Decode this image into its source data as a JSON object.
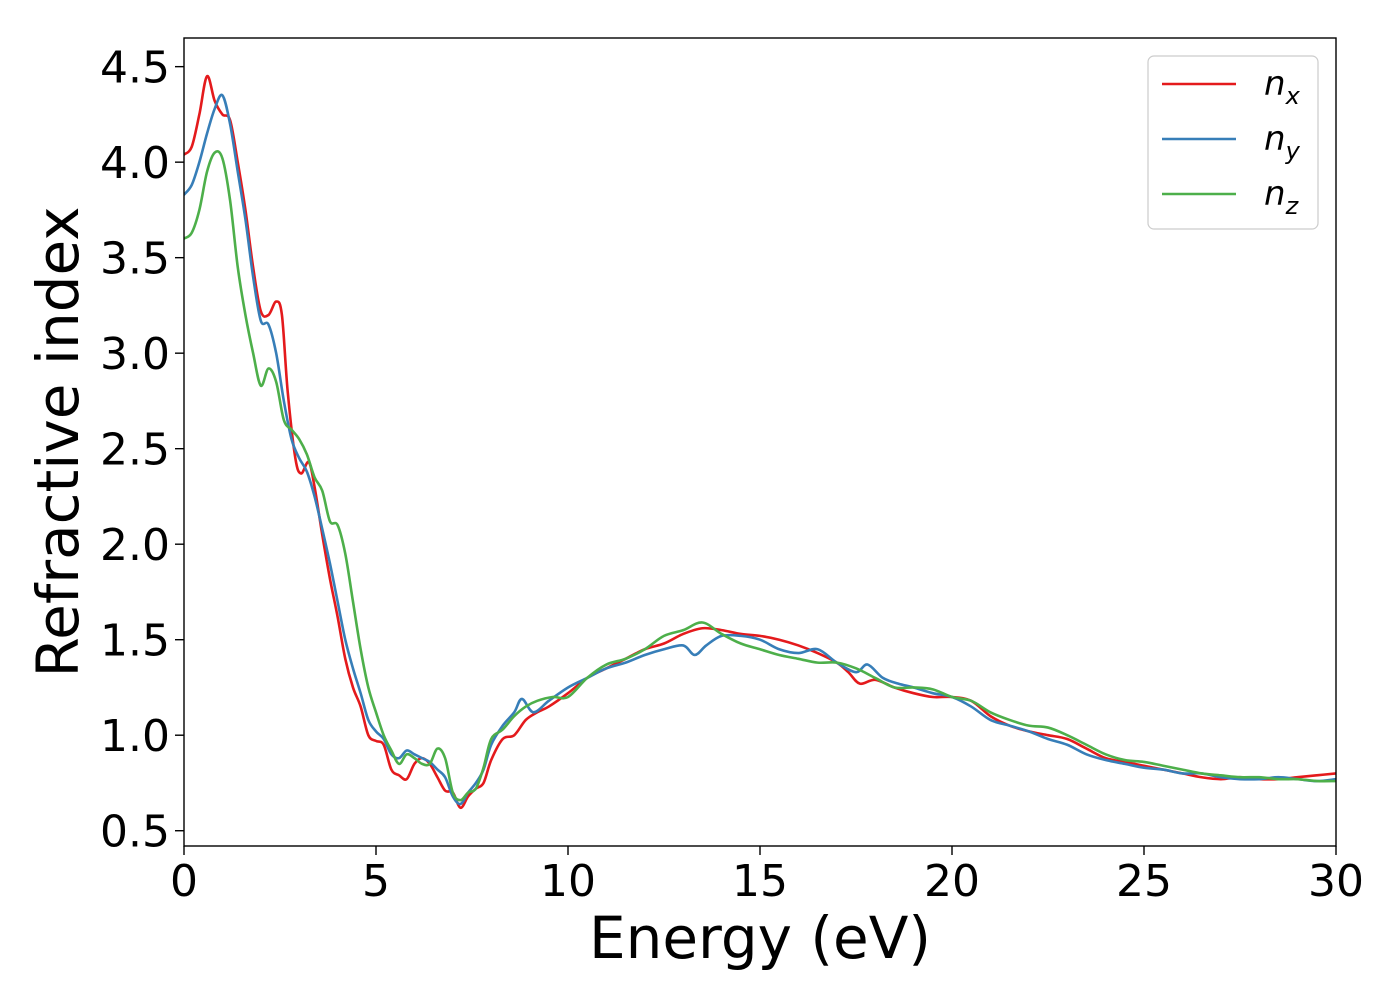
{
  "chart_data": {
    "type": "line",
    "title": "",
    "xlabel": "Energy (eV)",
    "ylabel": "Refractive index",
    "xlim": [
      0,
      30
    ],
    "ylim": [
      0.42,
      4.65
    ],
    "xticks": [
      0,
      5,
      10,
      15,
      20,
      25,
      30
    ],
    "yticks": [
      0.5,
      1.0,
      1.5,
      2.0,
      2.5,
      3.0,
      3.5,
      4.0,
      4.5
    ],
    "grid": false,
    "legend_position": "top-right",
    "series": [
      {
        "name": "n",
        "subscript": "x",
        "color": "#e41a1c",
        "points": [
          [
            0,
            4.04
          ],
          [
            0.2,
            4.08
          ],
          [
            0.4,
            4.25
          ],
          [
            0.6,
            4.45
          ],
          [
            0.8,
            4.32
          ],
          [
            1.0,
            4.25
          ],
          [
            1.2,
            4.22
          ],
          [
            1.4,
            4.0
          ],
          [
            1.6,
            3.75
          ],
          [
            1.8,
            3.45
          ],
          [
            2.0,
            3.22
          ],
          [
            2.2,
            3.2
          ],
          [
            2.4,
            3.27
          ],
          [
            2.55,
            3.2
          ],
          [
            2.7,
            2.8
          ],
          [
            2.9,
            2.45
          ],
          [
            3.05,
            2.37
          ],
          [
            3.25,
            2.43
          ],
          [
            3.4,
            2.3
          ],
          [
            3.6,
            2.05
          ],
          [
            3.8,
            1.82
          ],
          [
            4.0,
            1.62
          ],
          [
            4.2,
            1.4
          ],
          [
            4.4,
            1.25
          ],
          [
            4.6,
            1.15
          ],
          [
            4.8,
            1.0
          ],
          [
            5.0,
            0.97
          ],
          [
            5.2,
            0.95
          ],
          [
            5.4,
            0.82
          ],
          [
            5.6,
            0.79
          ],
          [
            5.8,
            0.77
          ],
          [
            6.0,
            0.85
          ],
          [
            6.2,
            0.88
          ],
          [
            6.4,
            0.85
          ],
          [
            6.6,
            0.78
          ],
          [
            6.8,
            0.71
          ],
          [
            7.0,
            0.7
          ],
          [
            7.2,
            0.62
          ],
          [
            7.4,
            0.68
          ],
          [
            7.6,
            0.72
          ],
          [
            7.8,
            0.75
          ],
          [
            8.0,
            0.87
          ],
          [
            8.3,
            0.98
          ],
          [
            8.6,
            1.0
          ],
          [
            8.9,
            1.08
          ],
          [
            9.2,
            1.12
          ],
          [
            9.5,
            1.15
          ],
          [
            10.0,
            1.22
          ],
          [
            10.5,
            1.3
          ],
          [
            11.0,
            1.35
          ],
          [
            11.5,
            1.4
          ],
          [
            12.0,
            1.45
          ],
          [
            12.5,
            1.48
          ],
          [
            13.0,
            1.53
          ],
          [
            13.5,
            1.56
          ],
          [
            14.0,
            1.55
          ],
          [
            14.5,
            1.53
          ],
          [
            15.0,
            1.52
          ],
          [
            15.5,
            1.5
          ],
          [
            16.0,
            1.47
          ],
          [
            16.5,
            1.43
          ],
          [
            17.0,
            1.38
          ],
          [
            17.3,
            1.33
          ],
          [
            17.6,
            1.27
          ],
          [
            18.0,
            1.29
          ],
          [
            18.5,
            1.25
          ],
          [
            19.0,
            1.22
          ],
          [
            19.5,
            1.2
          ],
          [
            20.0,
            1.2
          ],
          [
            20.5,
            1.18
          ],
          [
            21.0,
            1.1
          ],
          [
            21.5,
            1.05
          ],
          [
            22.0,
            1.02
          ],
          [
            22.5,
            1.0
          ],
          [
            23.0,
            0.98
          ],
          [
            23.5,
            0.93
          ],
          [
            24.0,
            0.88
          ],
          [
            24.5,
            0.86
          ],
          [
            25.0,
            0.84
          ],
          [
            25.5,
            0.82
          ],
          [
            26.0,
            0.8
          ],
          [
            26.5,
            0.78
          ],
          [
            27.0,
            0.77
          ],
          [
            27.5,
            0.78
          ],
          [
            28.0,
            0.77
          ],
          [
            28.5,
            0.77
          ],
          [
            29.0,
            0.78
          ],
          [
            29.5,
            0.79
          ],
          [
            30.0,
            0.8
          ]
        ]
      },
      {
        "name": "n",
        "subscript": "y",
        "color": "#377eb8",
        "points": [
          [
            0,
            3.83
          ],
          [
            0.2,
            3.88
          ],
          [
            0.4,
            4.0
          ],
          [
            0.6,
            4.15
          ],
          [
            0.8,
            4.28
          ],
          [
            1.0,
            4.35
          ],
          [
            1.2,
            4.2
          ],
          [
            1.4,
            3.95
          ],
          [
            1.6,
            3.7
          ],
          [
            1.8,
            3.4
          ],
          [
            2.0,
            3.17
          ],
          [
            2.2,
            3.15
          ],
          [
            2.4,
            3.0
          ],
          [
            2.6,
            2.75
          ],
          [
            2.8,
            2.55
          ],
          [
            3.0,
            2.45
          ],
          [
            3.2,
            2.38
          ],
          [
            3.4,
            2.25
          ],
          [
            3.6,
            2.08
          ],
          [
            3.8,
            1.9
          ],
          [
            4.0,
            1.7
          ],
          [
            4.2,
            1.5
          ],
          [
            4.4,
            1.35
          ],
          [
            4.6,
            1.22
          ],
          [
            4.8,
            1.08
          ],
          [
            5.0,
            1.02
          ],
          [
            5.2,
            0.98
          ],
          [
            5.4,
            0.9
          ],
          [
            5.6,
            0.88
          ],
          [
            5.8,
            0.92
          ],
          [
            6.0,
            0.9
          ],
          [
            6.2,
            0.88
          ],
          [
            6.4,
            0.86
          ],
          [
            6.6,
            0.82
          ],
          [
            6.8,
            0.78
          ],
          [
            7.0,
            0.68
          ],
          [
            7.2,
            0.64
          ],
          [
            7.4,
            0.7
          ],
          [
            7.6,
            0.75
          ],
          [
            7.8,
            0.82
          ],
          [
            8.0,
            0.95
          ],
          [
            8.3,
            1.05
          ],
          [
            8.6,
            1.12
          ],
          [
            8.8,
            1.19
          ],
          [
            9.1,
            1.12
          ],
          [
            9.5,
            1.18
          ],
          [
            10.0,
            1.25
          ],
          [
            10.5,
            1.3
          ],
          [
            11.0,
            1.35
          ],
          [
            11.5,
            1.38
          ],
          [
            12.0,
            1.42
          ],
          [
            12.5,
            1.45
          ],
          [
            13.0,
            1.47
          ],
          [
            13.3,
            1.42
          ],
          [
            13.6,
            1.47
          ],
          [
            14.0,
            1.52
          ],
          [
            14.5,
            1.52
          ],
          [
            15.0,
            1.5
          ],
          [
            15.5,
            1.45
          ],
          [
            16.0,
            1.43
          ],
          [
            16.5,
            1.45
          ],
          [
            17.0,
            1.38
          ],
          [
            17.5,
            1.33
          ],
          [
            17.8,
            1.37
          ],
          [
            18.2,
            1.3
          ],
          [
            18.6,
            1.27
          ],
          [
            19.0,
            1.25
          ],
          [
            19.5,
            1.22
          ],
          [
            20.0,
            1.2
          ],
          [
            20.5,
            1.15
          ],
          [
            21.0,
            1.08
          ],
          [
            21.5,
            1.05
          ],
          [
            22.0,
            1.02
          ],
          [
            22.5,
            0.98
          ],
          [
            23.0,
            0.95
          ],
          [
            23.5,
            0.9
          ],
          [
            24.0,
            0.87
          ],
          [
            24.5,
            0.85
          ],
          [
            25.0,
            0.83
          ],
          [
            25.5,
            0.82
          ],
          [
            26.0,
            0.8
          ],
          [
            26.5,
            0.8
          ],
          [
            27.0,
            0.78
          ],
          [
            27.5,
            0.77
          ],
          [
            28.0,
            0.77
          ],
          [
            28.5,
            0.78
          ],
          [
            29.0,
            0.77
          ],
          [
            29.5,
            0.76
          ],
          [
            30.0,
            0.77
          ]
        ]
      },
      {
        "name": "n",
        "subscript": "z",
        "color": "#4daf4a",
        "points": [
          [
            0,
            3.6
          ],
          [
            0.2,
            3.63
          ],
          [
            0.4,
            3.75
          ],
          [
            0.6,
            3.95
          ],
          [
            0.8,
            4.05
          ],
          [
            1.0,
            4.02
          ],
          [
            1.2,
            3.8
          ],
          [
            1.4,
            3.45
          ],
          [
            1.6,
            3.2
          ],
          [
            1.8,
            3.0
          ],
          [
            2.0,
            2.83
          ],
          [
            2.2,
            2.92
          ],
          [
            2.4,
            2.85
          ],
          [
            2.6,
            2.65
          ],
          [
            2.8,
            2.6
          ],
          [
            3.0,
            2.55
          ],
          [
            3.2,
            2.47
          ],
          [
            3.4,
            2.35
          ],
          [
            3.6,
            2.28
          ],
          [
            3.8,
            2.12
          ],
          [
            4.0,
            2.1
          ],
          [
            4.2,
            1.95
          ],
          [
            4.4,
            1.7
          ],
          [
            4.6,
            1.45
          ],
          [
            4.8,
            1.25
          ],
          [
            5.0,
            1.12
          ],
          [
            5.2,
            1.0
          ],
          [
            5.4,
            0.92
          ],
          [
            5.6,
            0.85
          ],
          [
            5.8,
            0.9
          ],
          [
            6.0,
            0.88
          ],
          [
            6.2,
            0.85
          ],
          [
            6.4,
            0.85
          ],
          [
            6.6,
            0.93
          ],
          [
            6.8,
            0.88
          ],
          [
            7.0,
            0.7
          ],
          [
            7.2,
            0.66
          ],
          [
            7.4,
            0.7
          ],
          [
            7.6,
            0.72
          ],
          [
            7.8,
            0.83
          ],
          [
            8.0,
            0.98
          ],
          [
            8.3,
            1.03
          ],
          [
            8.6,
            1.1
          ],
          [
            8.9,
            1.15
          ],
          [
            9.2,
            1.18
          ],
          [
            9.6,
            1.2
          ],
          [
            10.0,
            1.2
          ],
          [
            10.5,
            1.3
          ],
          [
            11.0,
            1.37
          ],
          [
            11.5,
            1.4
          ],
          [
            12.0,
            1.45
          ],
          [
            12.5,
            1.52
          ],
          [
            13.0,
            1.55
          ],
          [
            13.5,
            1.59
          ],
          [
            14.0,
            1.53
          ],
          [
            14.5,
            1.48
          ],
          [
            15.0,
            1.45
          ],
          [
            15.5,
            1.42
          ],
          [
            16.0,
            1.4
          ],
          [
            16.5,
            1.38
          ],
          [
            17.0,
            1.38
          ],
          [
            17.5,
            1.35
          ],
          [
            18.0,
            1.3
          ],
          [
            18.5,
            1.25
          ],
          [
            19.0,
            1.25
          ],
          [
            19.5,
            1.24
          ],
          [
            20.0,
            1.2
          ],
          [
            20.5,
            1.18
          ],
          [
            21.0,
            1.12
          ],
          [
            21.5,
            1.08
          ],
          [
            22.0,
            1.05
          ],
          [
            22.5,
            1.04
          ],
          [
            23.0,
            1.0
          ],
          [
            23.5,
            0.95
          ],
          [
            24.0,
            0.9
          ],
          [
            24.5,
            0.87
          ],
          [
            25.0,
            0.86
          ],
          [
            25.5,
            0.84
          ],
          [
            26.0,
            0.82
          ],
          [
            26.5,
            0.8
          ],
          [
            27.0,
            0.79
          ],
          [
            27.5,
            0.78
          ],
          [
            28.0,
            0.78
          ],
          [
            28.5,
            0.77
          ],
          [
            29.0,
            0.77
          ],
          [
            29.5,
            0.76
          ],
          [
            30.0,
            0.76
          ]
        ]
      }
    ]
  }
}
